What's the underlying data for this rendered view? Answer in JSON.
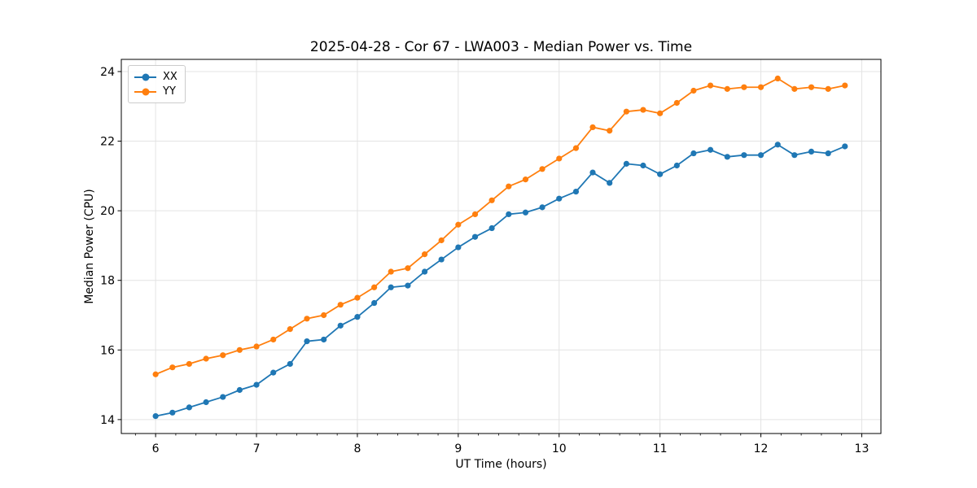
{
  "chart_data": {
    "type": "line",
    "title": "2025-04-28 - Cor 67 - LWA003 - Median Power vs. Time",
    "xlabel": "UT Time (hours)",
    "ylabel": "Median Power (CPU)",
    "x": [
      6.0,
      6.167,
      6.333,
      6.5,
      6.667,
      6.833,
      7.0,
      7.167,
      7.333,
      7.5,
      7.667,
      7.833,
      8.0,
      8.167,
      8.333,
      8.5,
      8.667,
      8.833,
      9.0,
      9.167,
      9.333,
      9.5,
      9.667,
      9.833,
      10.0,
      10.167,
      10.333,
      10.5,
      10.667,
      10.833,
      11.0,
      11.167,
      11.333,
      11.5,
      11.667,
      11.833,
      12.0,
      12.167,
      12.333,
      12.5,
      12.667,
      12.833
    ],
    "series": [
      {
        "name": "XX",
        "color": "#1f77b4",
        "marker": "circle",
        "values": [
          14.1,
          14.2,
          14.35,
          14.5,
          14.65,
          14.85,
          15.0,
          15.35,
          15.6,
          16.25,
          16.3,
          16.7,
          16.95,
          17.35,
          17.8,
          17.85,
          18.25,
          18.6,
          18.95,
          19.25,
          19.5,
          19.9,
          19.95,
          20.1,
          20.35,
          20.55,
          21.1,
          20.8,
          21.35,
          21.3,
          21.05,
          21.3,
          21.65,
          21.75,
          21.55,
          21.6,
          21.6,
          21.9,
          21.6,
          21.7,
          21.65,
          21.85
        ]
      },
      {
        "name": "YY",
        "color": "#ff7f0e",
        "marker": "circle",
        "values": [
          15.3,
          15.5,
          15.6,
          15.75,
          15.85,
          16.0,
          16.1,
          16.3,
          16.6,
          16.9,
          17.0,
          17.3,
          17.5,
          17.8,
          18.25,
          18.35,
          18.75,
          19.15,
          19.6,
          19.9,
          20.3,
          20.7,
          20.9,
          21.2,
          21.5,
          21.8,
          22.4,
          22.3,
          22.85,
          22.9,
          22.8,
          23.1,
          23.45,
          23.6,
          23.5,
          23.55,
          23.55,
          23.8,
          23.5,
          23.55,
          23.5,
          23.6
        ]
      }
    ],
    "xticks": [
      "6",
      "7",
      "8",
      "9",
      "10",
      "11",
      "12",
      "13"
    ],
    "yticks": [
      "14",
      "16",
      "18",
      "20",
      "22",
      "24"
    ],
    "xlim": [
      5.66,
      13.19
    ],
    "ylim": [
      13.6,
      24.35
    ],
    "x_minor_tick_step": 0.2,
    "grid": true,
    "legend_position": "upper left",
    "colors": {
      "grid": "#e3e3e3",
      "spine": "#000000",
      "background": "#ffffff"
    }
  }
}
